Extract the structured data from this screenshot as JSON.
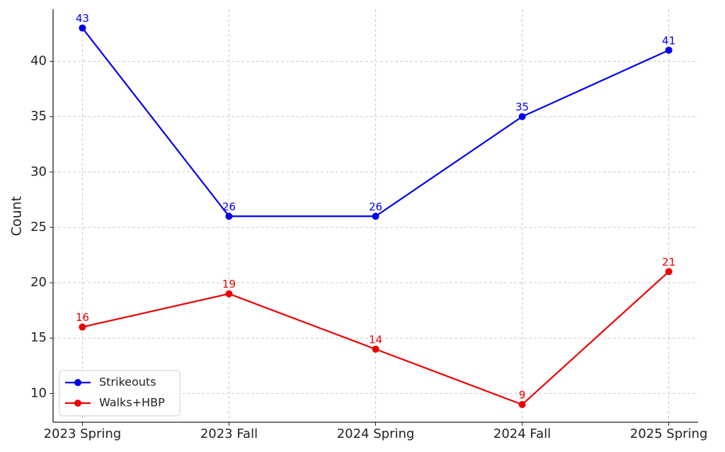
{
  "chart_data": {
    "type": "line",
    "y_label": "Count",
    "categories": [
      "2023 Spring",
      "2023 Fall",
      "2024 Spring",
      "2024 Fall",
      "2025 Spring"
    ],
    "series": [
      {
        "name": "Strikeouts",
        "color": "#0000ee",
        "values": [
          43,
          26,
          26,
          35,
          41
        ]
      },
      {
        "name": "Walks+HBP",
        "color": "#ee0000",
        "values": [
          16,
          19,
          14,
          9,
          21
        ]
      }
    ],
    "ylim": [
      7.4,
      44.7
    ],
    "yticks": [
      10,
      15,
      20,
      25,
      30,
      35,
      40
    ],
    "grid": true,
    "legend": "lower left"
  }
}
